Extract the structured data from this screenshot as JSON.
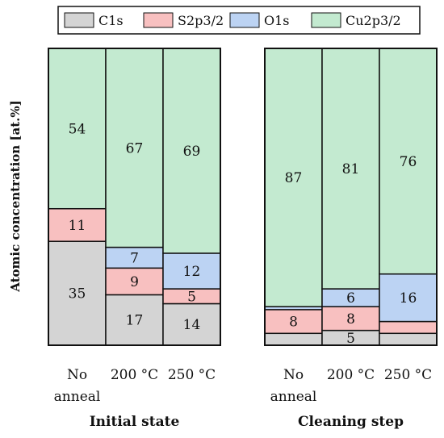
{
  "colors": {
    "C1s": "#d4d4d4",
    "S2p3/2": "#f8c0c0",
    "O1s": "#bcd3f3",
    "Cu2p3/2": "#c3ead0",
    "stroke": "#111111"
  },
  "legend": {
    "placement": "top",
    "items": [
      {
        "label": "C1s",
        "color_key": "C1s"
      },
      {
        "label": "S2p3/2",
        "color_key": "S2p3/2"
      },
      {
        "label": "O1s",
        "color_key": "O1s"
      },
      {
        "label": "Cu2p3/2",
        "color_key": "Cu2p3/2"
      }
    ]
  },
  "chart_data": {
    "type": "bar",
    "stacked": true,
    "ylabel": "Atomic concentration [at.%]",
    "ylim": [
      0,
      100
    ],
    "grid": false,
    "series_order": [
      "C1s",
      "S2p3/2",
      "O1s",
      "Cu2p3/2"
    ],
    "panels": [
      {
        "title": "Initial state",
        "categories": [
          {
            "lines": [
              "No",
              "anneal"
            ]
          },
          {
            "lines": [
              "200 °C"
            ]
          },
          {
            "lines": [
              "250 °C"
            ]
          }
        ],
        "series": [
          {
            "name": "C1s",
            "values": [
              35,
              17,
              14
            ]
          },
          {
            "name": "S2p3/2",
            "values": [
              11,
              9,
              5
            ]
          },
          {
            "name": "O1s",
            "values": [
              0,
              7,
              12
            ]
          },
          {
            "name": "Cu2p3/2",
            "values": [
              54,
              67,
              69
            ]
          }
        ],
        "labels": [
          {
            "series": "C1s",
            "values": [
              "35",
              "17",
              "14"
            ]
          },
          {
            "series": "S2p3/2",
            "values": [
              "11",
              "9",
              "5"
            ]
          },
          {
            "series": "O1s",
            "values": [
              "",
              "7",
              "12"
            ]
          },
          {
            "series": "Cu2p3/2",
            "values": [
              "54",
              "67",
              "69"
            ]
          }
        ]
      },
      {
        "title": "Cleaning step",
        "categories": [
          {
            "lines": [
              "No",
              "anneal"
            ]
          },
          {
            "lines": [
              "200 °C"
            ]
          },
          {
            "lines": [
              "250 °C"
            ]
          }
        ],
        "series": [
          {
            "name": "C1s",
            "values": [
              4,
              5,
              4
            ]
          },
          {
            "name": "S2p3/2",
            "values": [
              8,
              8,
              4
            ]
          },
          {
            "name": "O1s",
            "values": [
              1,
              6,
              16
            ]
          },
          {
            "name": "Cu2p3/2",
            "values": [
              87,
              81,
              76
            ]
          }
        ],
        "labels": [
          {
            "series": "C1s",
            "values": [
              "",
              "5",
              ""
            ]
          },
          {
            "series": "S2p3/2",
            "values": [
              "8",
              "8",
              ""
            ]
          },
          {
            "series": "O1s",
            "values": [
              "",
              "6",
              "16"
            ]
          },
          {
            "series": "Cu2p3/2",
            "values": [
              "87",
              "81",
              "76"
            ]
          }
        ]
      }
    ]
  }
}
